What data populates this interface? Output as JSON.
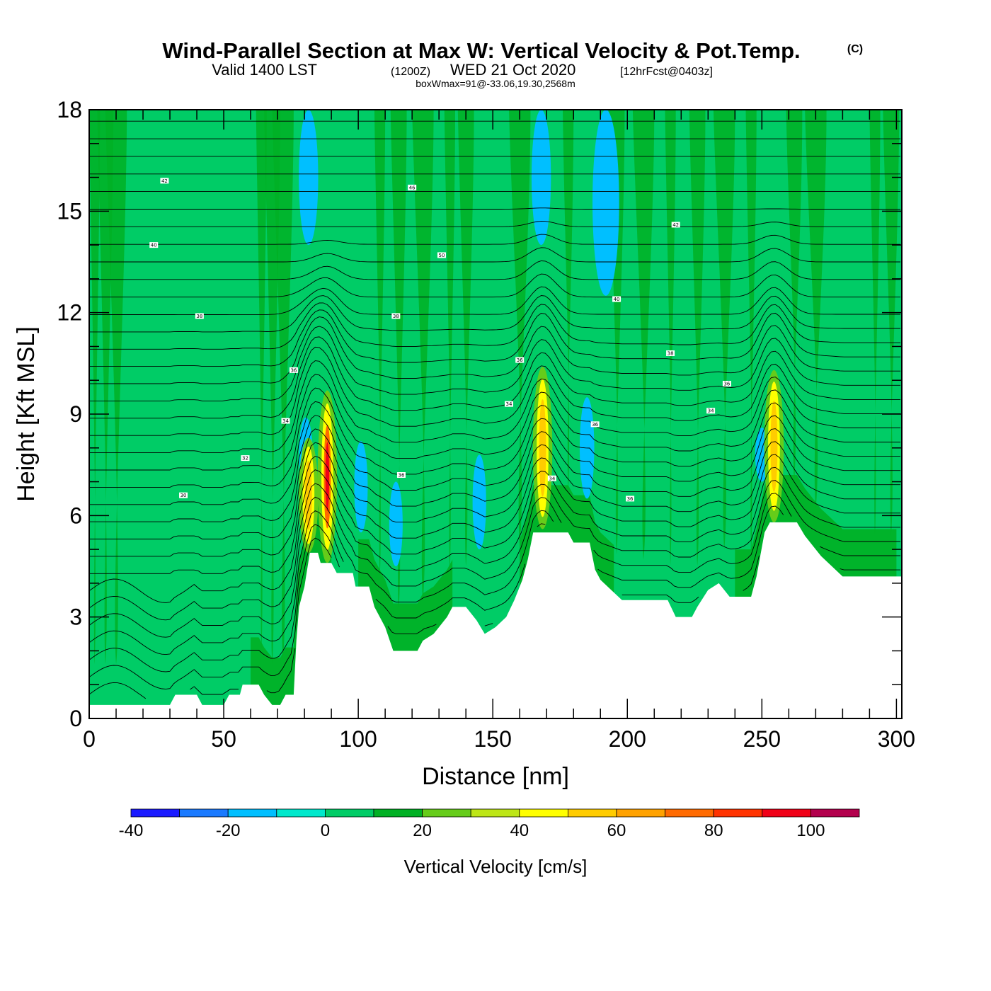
{
  "title": {
    "main": "Wind-Parallel Section at Max W: Vertical Velocity & Pot.Temp.",
    "copyright": "(C)",
    "line2_a": "Valid 1400 LST",
    "line2_b": "(1200Z)",
    "line2_c": "WED 21 Oct 2020",
    "line2_d": "[12hrFcst@0403z]",
    "line3": "boxWmax=91@-33.06,19.30,2568m"
  },
  "chart_data": {
    "type": "heatmap",
    "xlabel": "Distance [nm]",
    "ylabel": "Height [Kft MSL]",
    "xlim": [
      0,
      302
    ],
    "ylim": [
      0,
      18
    ],
    "x_ticks": [
      "0",
      "50",
      "100",
      "150",
      "200",
      "250",
      "300"
    ],
    "y_ticks": [
      "0",
      "3",
      "6",
      "9",
      "12",
      "15",
      "18"
    ],
    "background_level": "0 to 10 cm/s",
    "colorbar": {
      "title": "Vertical Velocity [cm/s]",
      "levels": [
        -40,
        -30,
        -20,
        -10,
        0,
        10,
        20,
        30,
        40,
        50,
        60,
        70,
        80,
        90,
        100,
        110
      ],
      "labels": [
        "-40",
        "-20",
        "0",
        "20",
        "40",
        "60",
        "80",
        "100"
      ],
      "colors": [
        "#1a1aff",
        "#1a7aff",
        "#00bfff",
        "#00e8cc",
        "#00cc66",
        "#00b024",
        "#66cc1a",
        "#bde617",
        "#ffff00",
        "#ffcc00",
        "#ffa200",
        "#ff6a00",
        "#ff3300",
        "#f00018",
        "#b3004d"
      ]
    },
    "terrain_kft": [
      [
        0,
        0.4
      ],
      [
        30,
        0.4
      ],
      [
        32,
        0.7
      ],
      [
        40,
        0.7
      ],
      [
        42,
        0.4
      ],
      [
        50,
        0.4
      ],
      [
        52,
        0.7
      ],
      [
        56,
        0.7
      ],
      [
        57,
        1.0
      ],
      [
        63,
        1.0
      ],
      [
        65,
        0.7
      ],
      [
        68,
        0.4
      ],
      [
        71,
        0.4
      ],
      [
        73,
        0.7
      ],
      [
        76,
        0.7
      ],
      [
        77,
        2.3
      ],
      [
        78,
        3.3
      ],
      [
        80,
        3.9
      ],
      [
        82,
        4.9
      ],
      [
        85,
        4.9
      ],
      [
        86,
        4.6
      ],
      [
        90,
        4.6
      ],
      [
        92,
        4.3
      ],
      [
        98,
        4.3
      ],
      [
        99,
        3.9
      ],
      [
        104,
        3.9
      ],
      [
        106,
        3.3
      ],
      [
        110,
        2.7
      ],
      [
        113,
        2.0
      ],
      [
        122,
        2.0
      ],
      [
        124,
        2.3
      ],
      [
        128,
        2.5
      ],
      [
        130,
        2.7
      ],
      [
        133,
        3.0
      ],
      [
        135,
        3.3
      ],
      [
        140,
        3.3
      ],
      [
        144,
        2.9
      ],
      [
        147,
        2.5
      ],
      [
        151,
        2.7
      ],
      [
        155,
        3.0
      ],
      [
        158,
        3.5
      ],
      [
        161,
        4.1
      ],
      [
        163,
        4.7
      ],
      [
        165,
        5.5
      ],
      [
        178,
        5.5
      ],
      [
        180,
        5.2
      ],
      [
        186,
        5.2
      ],
      [
        188,
        4.4
      ],
      [
        190,
        4.1
      ],
      [
        194,
        3.8
      ],
      [
        198,
        3.5
      ],
      [
        215,
        3.5
      ],
      [
        218,
        3.0
      ],
      [
        224,
        3.0
      ],
      [
        226,
        3.3
      ],
      [
        230,
        3.8
      ],
      [
        234,
        4.0
      ],
      [
        238,
        3.6
      ],
      [
        246,
        3.6
      ],
      [
        248,
        4.2
      ],
      [
        251,
        5.5
      ],
      [
        253,
        5.8
      ],
      [
        263,
        5.8
      ],
      [
        266,
        5.4
      ],
      [
        269,
        5.1
      ],
      [
        272,
        4.8
      ],
      [
        276,
        4.5
      ],
      [
        280,
        4.2
      ],
      [
        302,
        4.2
      ]
    ],
    "updrafts": [
      {
        "x": 81.5,
        "base_kft": 4.9,
        "top_kft": 8.3,
        "max_cms": 50
      },
      {
        "x": 88.5,
        "base_kft": 4.6,
        "top_kft": 9.7,
        "max_cms": 90
      },
      {
        "x": 168.5,
        "base_kft": 5.6,
        "top_kft": 10.4,
        "max_cms": 50
      },
      {
        "x": 254.5,
        "base_kft": 5.8,
        "top_kft": 10.3,
        "max_cms": 60
      }
    ],
    "downdrafts": [
      {
        "x": 80.5,
        "base_kft": 6.8,
        "top_kft": 8.9,
        "min_cms": -15
      },
      {
        "x": 101,
        "base_kft": 5.5,
        "top_kft": 8.2,
        "min_cms": -15
      },
      {
        "x": 114,
        "base_kft": 4.5,
        "top_kft": 7.0,
        "min_cms": -15
      },
      {
        "x": 145,
        "base_kft": 5.0,
        "top_kft": 7.8,
        "min_cms": -15
      },
      {
        "x": 185,
        "base_kft": 6.5,
        "top_kft": 9.5,
        "min_cms": -15
      },
      {
        "x": 81.5,
        "base_kft": 14.0,
        "top_kft": 18.0,
        "min_cms": -15
      },
      {
        "x": 168,
        "base_kft": 14.0,
        "top_kft": 18.0,
        "min_cms": -15
      },
      {
        "x": 192,
        "base_kft": 12.5,
        "top_kft": 18.0,
        "min_cms": -15
      },
      {
        "x": 250,
        "base_kft": 7.0,
        "top_kft": 8.6,
        "min_cms": -15
      }
    ],
    "theta_contour_labels": [
      {
        "text": "42",
        "x": 28,
        "y_kft": 15.9
      },
      {
        "text": "40",
        "x": 24,
        "y_kft": 14.0
      },
      {
        "text": "38",
        "x": 41,
        "y_kft": 11.9
      },
      {
        "text": "36",
        "x": 76,
        "y_kft": 10.3
      },
      {
        "text": "34",
        "x": 73,
        "y_kft": 8.8
      },
      {
        "text": "32",
        "x": 58,
        "y_kft": 7.7
      },
      {
        "text": "30",
        "x": 35,
        "y_kft": 6.6
      },
      {
        "text": "46",
        "x": 120,
        "y_kft": 15.7
      },
      {
        "text": "50",
        "x": 131,
        "y_kft": 13.7
      },
      {
        "text": "38",
        "x": 114,
        "y_kft": 11.9
      },
      {
        "text": "36",
        "x": 160,
        "y_kft": 10.6
      },
      {
        "text": "34",
        "x": 156,
        "y_kft": 9.3
      },
      {
        "text": "36",
        "x": 116,
        "y_kft": 7.2
      },
      {
        "text": "34",
        "x": 172,
        "y_kft": 7.1
      },
      {
        "text": "42",
        "x": 218,
        "y_kft": 14.6
      },
      {
        "text": "40",
        "x": 196,
        "y_kft": 12.4
      },
      {
        "text": "38",
        "x": 216,
        "y_kft": 10.8
      },
      {
        "text": "36",
        "x": 237,
        "y_kft": 9.9
      },
      {
        "text": "34",
        "x": 231,
        "y_kft": 9.1
      },
      {
        "text": "36",
        "x": 188,
        "y_kft": 8.7
      },
      {
        "text": "36",
        "x": 201,
        "y_kft": 6.5
      }
    ]
  }
}
